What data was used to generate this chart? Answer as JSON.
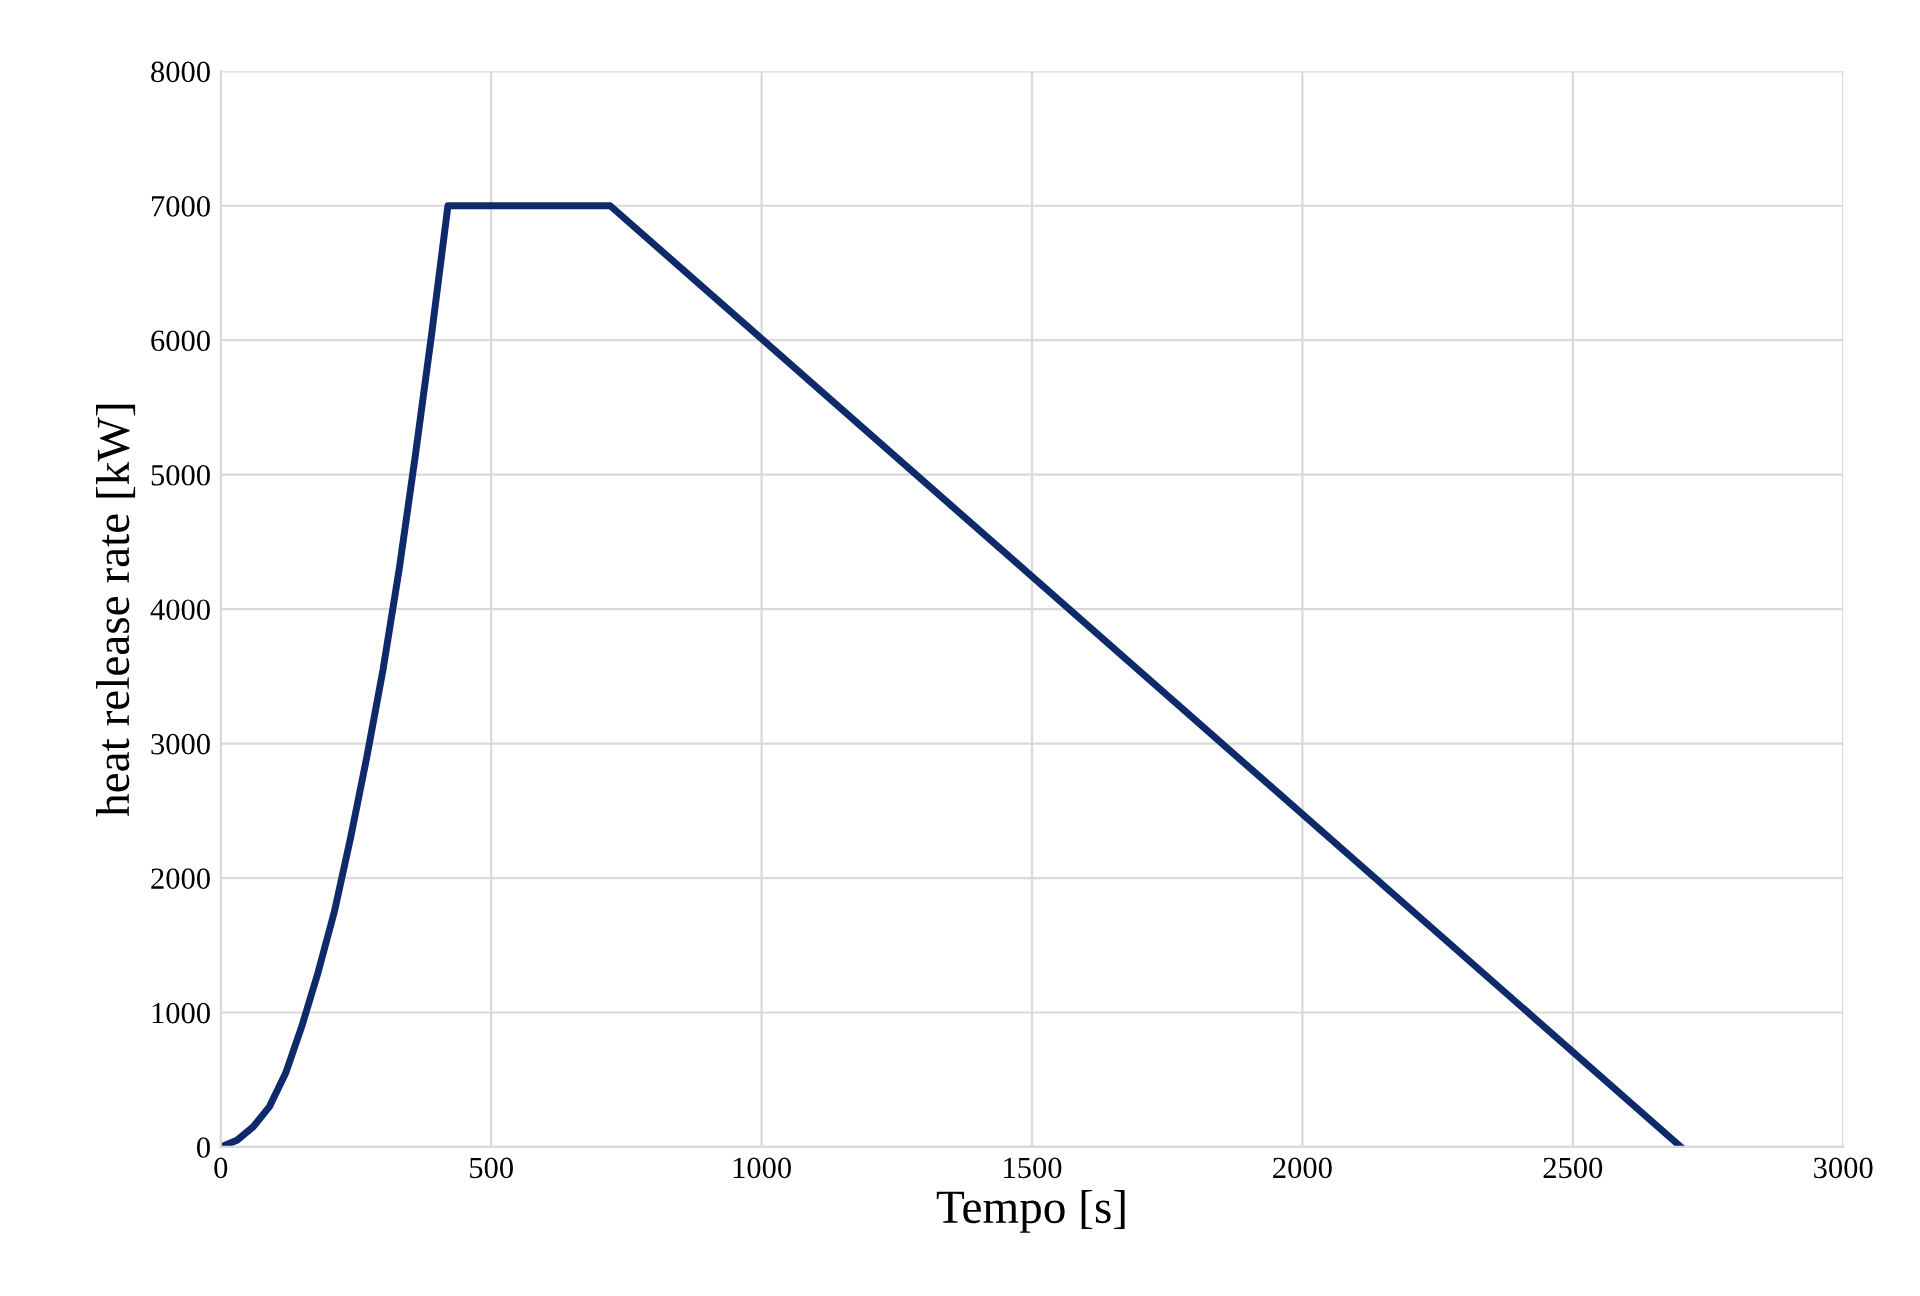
{
  "chart_data": {
    "type": "line",
    "xlabel": "Tempo [s]",
    "ylabel": "heat release rate [kW]",
    "x": [
      0,
      30,
      60,
      90,
      120,
      150,
      180,
      210,
      240,
      270,
      300,
      330,
      360,
      390,
      420,
      720,
      2700
    ],
    "series": [
      {
        "color": "#0e2a6b",
        "values": [
          0,
          50,
          150,
          300,
          550,
          900,
          1300,
          1750,
          2300,
          2900,
          3550,
          4300,
          5150,
          6050,
          7000,
          7000,
          0
        ]
      }
    ],
    "xlim": [
      0,
      3000
    ],
    "xticks": [
      0,
      500,
      1000,
      1500,
      2000,
      2500,
      3000
    ],
    "ylim": [
      0,
      8000
    ],
    "yticks": [
      0,
      1000,
      2000,
      3000,
      4000,
      5000,
      6000,
      7000,
      8000
    ],
    "grid": true,
    "marker": "none",
    "line_style": "solid"
  }
}
